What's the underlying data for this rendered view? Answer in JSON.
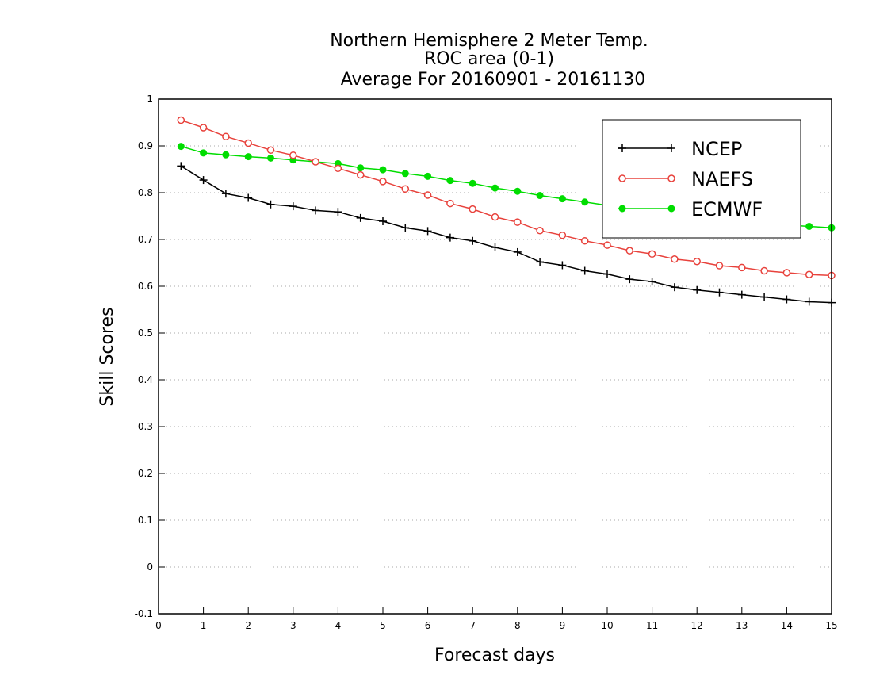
{
  "chart_data": {
    "type": "line",
    "title_lines": [
      "Northern Hemisphere 2 Meter Temp.",
      "ROC area (0-1)",
      "Average For 20160901 - 20161130"
    ],
    "xlabel": "Forecast days",
    "ylabel": "Skill Scores",
    "xlim": [
      0,
      15
    ],
    "ylim": [
      -0.1,
      1
    ],
    "x_ticks": [
      "0",
      "1",
      "2",
      "3",
      "4",
      "5",
      "6",
      "7",
      "8",
      "9",
      "10",
      "11",
      "12",
      "13",
      "14",
      "15"
    ],
    "y_ticks": [
      "-0.1",
      "0",
      "0.1",
      "0.2",
      "0.3",
      "0.4",
      "0.5",
      "0.6",
      "0.7",
      "0.8",
      "0.9",
      "1"
    ],
    "grid": "horizontal-dotted",
    "legend_position": "top-right",
    "x": [
      0.5,
      1,
      1.5,
      2,
      2.5,
      3,
      3.5,
      4,
      4.5,
      5,
      5.5,
      6,
      6.5,
      7,
      7.5,
      8,
      8.5,
      9,
      9.5,
      10,
      10.5,
      11,
      11.5,
      12,
      12.5,
      13,
      13.5,
      14,
      14.5,
      15
    ],
    "series": [
      {
        "name": "NCEP",
        "color": "#000000",
        "marker": "plus",
        "values": [
          0.857,
          0.827,
          0.798,
          0.789,
          0.775,
          0.771,
          0.762,
          0.759,
          0.746,
          0.739,
          0.725,
          0.718,
          0.704,
          0.697,
          0.683,
          0.673,
          0.652,
          0.645,
          0.633,
          0.626,
          0.615,
          0.61,
          0.598,
          0.592,
          0.587,
          0.582,
          0.577,
          0.572,
          0.567,
          0.565
        ]
      },
      {
        "name": "NAEFS",
        "color": "#e8423c",
        "marker": "open-circle",
        "values": [
          0.955,
          0.939,
          0.92,
          0.906,
          0.891,
          0.88,
          0.866,
          0.852,
          0.838,
          0.824,
          0.808,
          0.795,
          0.777,
          0.765,
          0.748,
          0.737,
          0.719,
          0.709,
          0.697,
          0.688,
          0.676,
          0.669,
          0.658,
          0.653,
          0.644,
          0.64,
          0.633,
          0.629,
          0.625,
          0.623
        ]
      },
      {
        "name": "ECMWF",
        "color": "#00dd00",
        "marker": "filled-circle",
        "values": [
          0.899,
          0.885,
          0.881,
          0.877,
          0.874,
          0.87,
          0.866,
          0.862,
          0.853,
          0.849,
          0.841,
          0.835,
          0.826,
          0.82,
          0.81,
          0.803,
          0.794,
          0.787,
          0.78,
          0.773,
          0.766,
          0.759,
          0.752,
          0.746,
          0.74,
          0.737,
          0.734,
          0.731,
          0.728,
          0.725
        ]
      }
    ]
  }
}
